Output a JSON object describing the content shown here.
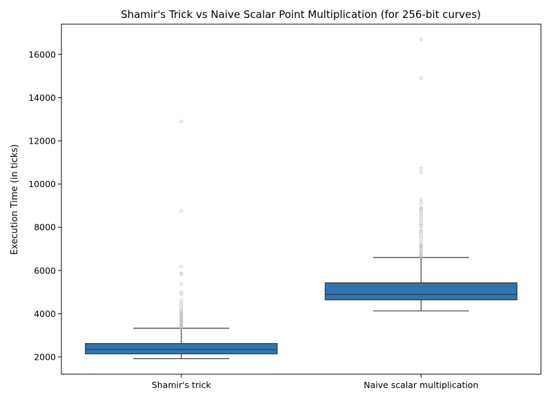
{
  "chart_data": {
    "type": "box",
    "title": "Shamir's Trick vs Naive Scalar Point Multiplication (for 256-bit curves)",
    "xlabel": "",
    "ylabel": "Execution Time (in ticks)",
    "ylim": [
      1200,
      17400
    ],
    "yticks": [
      2000,
      4000,
      6000,
      8000,
      10000,
      12000,
      14000,
      16000
    ],
    "grid": false,
    "categories": [
      "Shamir's trick",
      "Naive scalar multiplication"
    ],
    "boxes": [
      {
        "category": "Shamir's trick",
        "whisker_low": 1920,
        "q1": 2140,
        "median": 2340,
        "q3": 2620,
        "whisker_high": 3330,
        "outliers": [
          3360,
          3400,
          3440,
          3480,
          3520,
          3560,
          3600,
          3650,
          3700,
          3750,
          3800,
          3850,
          3900,
          3950,
          4000,
          4050,
          4100,
          4200,
          4300,
          4400,
          4500,
          4620,
          4900,
          5000,
          5370,
          5830,
          5870,
          6180,
          8750,
          12900
        ]
      },
      {
        "category": "Naive scalar multiplication",
        "whisker_low": 4130,
        "q1": 4640,
        "median": 4890,
        "q3": 5430,
        "whisker_high": 6600,
        "outliers": [
          6640,
          6680,
          6720,
          6780,
          6850,
          6920,
          7000,
          7050,
          7100,
          7150,
          7200,
          7300,
          7450,
          7550,
          7650,
          7760,
          7800,
          7900,
          8050,
          8100,
          8200,
          8300,
          8400,
          8500,
          8600,
          8700,
          8800,
          8850,
          8900,
          9100,
          9280,
          10540,
          10720,
          14900,
          16700
        ]
      }
    ],
    "box_color": "#2e75b0",
    "line_color": "#3b3b3b",
    "outlier_color": "#bdbdbd"
  }
}
